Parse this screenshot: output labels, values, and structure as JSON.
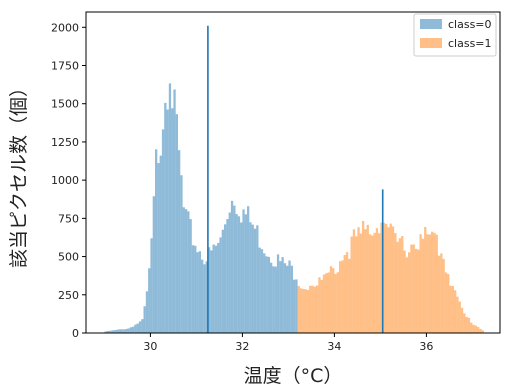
{
  "chart_data": {
    "type": "bar",
    "subtype": "overlapping-histogram",
    "title": "",
    "xlabel": "温度（°C）",
    "ylabel": "該当ピクセル数（個）",
    "xlim": [
      28.6,
      37.6
    ],
    "ylim": [
      0,
      2100
    ],
    "x_ticks": [
      30,
      32,
      34,
      36
    ],
    "x_tick_labels": [
      "30",
      "32",
      "34",
      "36"
    ],
    "y_ticks": [
      0,
      250,
      500,
      750,
      1000,
      1250,
      1500,
      1750,
      2000
    ],
    "y_tick_labels": [
      "0",
      "250",
      "500",
      "750",
      "1000",
      "1250",
      "1500",
      "1750",
      "2000"
    ],
    "grid": false,
    "legend_position": "top-right",
    "bin_width": 0.05,
    "series": [
      {
        "name": "class=0",
        "color": "#1f77b4",
        "alpha": 0.5,
        "x": [
          29.0,
          29.5,
          29.8,
          29.9,
          30.0,
          30.1,
          30.2,
          30.3,
          30.35,
          30.4,
          30.45,
          30.5,
          30.55,
          30.6,
          30.7,
          30.8,
          30.9,
          31.0,
          31.1,
          31.2,
          31.3,
          31.5,
          31.7,
          31.8,
          32.0,
          32.2,
          32.5,
          32.8,
          33.0,
          33.1,
          33.15
        ],
        "values": [
          10,
          30,
          80,
          250,
          560,
          1100,
          1320,
          1620,
          1700,
          1850,
          1600,
          1400,
          1300,
          1150,
          800,
          700,
          620,
          560,
          520,
          490,
          520,
          600,
          860,
          900,
          790,
          700,
          550,
          460,
          430,
          400,
          390
        ]
      },
      {
        "name": "class=1",
        "color": "#ff7f0e",
        "alpha": 0.5,
        "x": [
          33.2,
          33.5,
          33.8,
          34.0,
          34.2,
          34.4,
          34.6,
          34.8,
          35.0,
          35.1,
          35.3,
          35.5,
          35.8,
          36.0,
          36.2,
          36.4,
          36.6,
          36.8,
          37.0,
          37.2
        ],
        "values": [
          300,
          320,
          360,
          420,
          520,
          600,
          650,
          700,
          760,
          690,
          600,
          560,
          600,
          620,
          600,
          450,
          260,
          120,
          60,
          20
        ]
      }
    ],
    "vertical_lines": [
      {
        "x": 31.25,
        "color": "#1f77b4",
        "ymax": 2010
      },
      {
        "x": 35.05,
        "color": "#1f77b4",
        "ymax": 940
      }
    ]
  }
}
